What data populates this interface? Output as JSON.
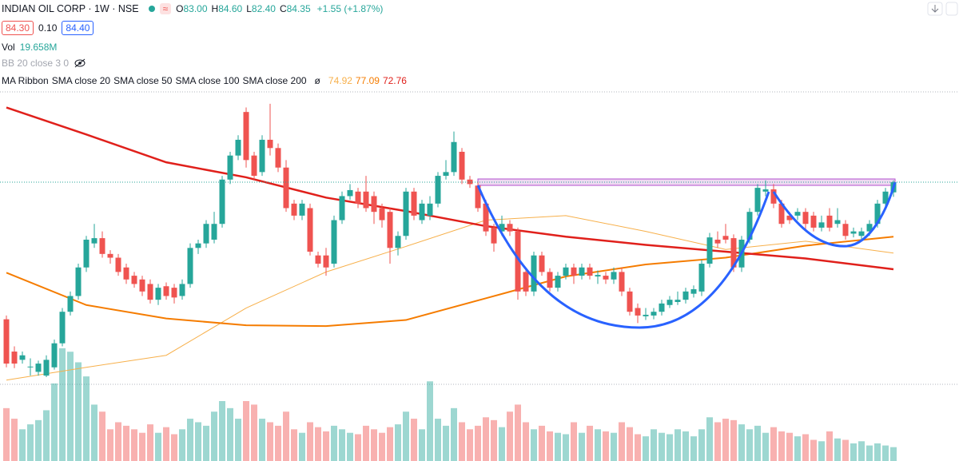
{
  "header": {
    "symbol": "INDIAN OIL CORP · 1W · NSE",
    "badge": "≈",
    "ohlc_labels": [
      "O",
      "H",
      "L",
      "C"
    ],
    "ohlc_values": [
      "83.00",
      "84.60",
      "82.40",
      "84.35"
    ],
    "change": "+1.55 (+1.87%)",
    "bid": "84.30",
    "spread": "0.10",
    "ask": "84.40",
    "vol_title": "Vol",
    "vol_value": "19.658M",
    "bb": "BB 20 close 3 0",
    "ma_title": "MA Ribbon",
    "ma_extra": "SMA close 200",
    "ma_sep": "ø"
  },
  "chart_data": {
    "type": "candlestick",
    "ylim": [
      47.23,
      108.61
    ],
    "volume_lim": [
      0,
      170
    ],
    "colors": {
      "up": "#26a69a",
      "down": "#ef5350",
      "volume_up": "rgba(38,166,154,0.45)",
      "volume_down": "rgba(239,83,80,0.45)"
    },
    "open": [
      66.1,
      61.8,
      60.7,
      59.7,
      59.1,
      58.6,
      59.7,
      62.9,
      67.1,
      69.2,
      73.0,
      76.2,
      76.9,
      74.8,
      74.3,
      73.0,
      71.9,
      71.4,
      70.8,
      68.7,
      70.5,
      70.3,
      69.2,
      70.8,
      75.6,
      76.2,
      76.7,
      78.8,
      84.7,
      87.9,
      93.7,
      87.9,
      85.7,
      90.0,
      88.9,
      86.3,
      81.5,
      79.9,
      80.9,
      74.6,
      74.6,
      73.5,
      79.3,
      82.5,
      83.1,
      83.1,
      82.5,
      80.9,
      80.4,
      75.6,
      77.2,
      83.1,
      79.3,
      79.9,
      81.5,
      85.2,
      85.7,
      88.4,
      84.7,
      83.9,
      81.5,
      78.3,
      77.8,
      78.8,
      77.8,
      72.4,
      69.8,
      74.6,
      72.4,
      70.3,
      71.9,
      73.0,
      71.9,
      73.0,
      71.8,
      71.9,
      71.4,
      72.4,
      69.8,
      67.6,
      66.5,
      66.6,
      67.1,
      68.0,
      68.4,
      68.7,
      69.5,
      69.8,
      73.5,
      76.7,
      77.2,
      76.9,
      73.0,
      76.7,
      80.4,
      83.1,
      83.4,
      81.5,
      79.9,
      79.9,
      80.4,
      79.9,
      78.3,
      79.9,
      78.8,
      78.8,
      77.5,
      77.2,
      77.8,
      78.8,
      81.5,
      83.0
    ],
    "high": [
      66.6,
      62.5,
      61.8,
      60.9,
      60.6,
      61.3,
      63.4,
      67.6,
      69.8,
      73.5,
      77.2,
      78.8,
      77.8,
      75.3,
      74.8,
      73.5,
      72.4,
      71.9,
      71.4,
      70.8,
      71.0,
      70.8,
      71.4,
      76.2,
      76.7,
      79.3,
      80.4,
      85.2,
      88.4,
      90.6,
      94.3,
      88.4,
      90.6,
      94.8,
      89.5,
      87.3,
      82.0,
      82.0,
      81.5,
      75.1,
      75.6,
      79.9,
      83.1,
      84.1,
      83.6,
      85.2,
      83.1,
      81.5,
      80.9,
      77.8,
      83.6,
      83.6,
      82.0,
      82.5,
      85.7,
      87.3,
      91.1,
      88.9,
      85.2,
      84.4,
      82.0,
      78.8,
      79.9,
      79.3,
      78.3,
      72.9,
      75.1,
      75.1,
      72.9,
      72.4,
      73.5,
      73.5,
      73.5,
      73.5,
      72.6,
      72.4,
      73.0,
      73.0,
      70.3,
      68.2,
      67.6,
      67.6,
      68.7,
      69.2,
      69.8,
      70.3,
      70.6,
      74.0,
      77.6,
      77.8,
      78.8,
      77.4,
      77.2,
      80.9,
      84.1,
      84.6,
      84.1,
      82.0,
      80.4,
      80.9,
      80.9,
      80.4,
      79.9,
      80.9,
      80.9,
      79.3,
      78.3,
      78.3,
      79.3,
      82.0,
      83.6,
      84.6
    ],
    "low": [
      59.7,
      59.6,
      60.2,
      58.6,
      58.6,
      58.4,
      59.4,
      62.5,
      66.6,
      68.7,
      72.4,
      75.6,
      74.3,
      73.5,
      71.9,
      70.8,
      70.3,
      69.2,
      68.2,
      68.0,
      68.7,
      68.2,
      68.7,
      70.3,
      74.8,
      75.6,
      76.2,
      78.3,
      84.1,
      87.3,
      86.3,
      84.7,
      85.2,
      87.9,
      85.7,
      80.4,
      79.3,
      79.3,
      74.6,
      73.0,
      71.9,
      73.0,
      78.8,
      82.0,
      80.9,
      80.4,
      78.8,
      78.3,
      73.5,
      74.6,
      76.7,
      79.3,
      78.8,
      79.3,
      81.0,
      84.7,
      85.2,
      84.1,
      83.6,
      80.4,
      77.2,
      75.1,
      77.2,
      77.2,
      68.7,
      69.2,
      69.2,
      71.9,
      69.8,
      69.8,
      71.4,
      70.8,
      71.4,
      71.4,
      70.8,
      70.8,
      70.8,
      69.2,
      66.6,
      65.6,
      66.0,
      66.1,
      66.6,
      67.6,
      68.0,
      68.2,
      69.0,
      69.2,
      73.0,
      75.6,
      76.2,
      72.4,
      72.4,
      76.2,
      79.9,
      82.5,
      80.9,
      78.3,
      78.8,
      79.3,
      77.8,
      77.8,
      77.8,
      77.8,
      78.3,
      76.7,
      77.0,
      76.7,
      77.2,
      78.3,
      80.9,
      82.4
    ],
    "close": [
      60.2,
      60.2,
      61.3,
      59.8,
      60.2,
      60.7,
      62.9,
      67.1,
      69.2,
      73.0,
      76.7,
      76.9,
      74.8,
      74.3,
      72.4,
      71.4,
      70.8,
      69.8,
      68.7,
      70.3,
      69.2,
      69.0,
      70.8,
      75.6,
      76.2,
      78.8,
      78.8,
      84.7,
      87.9,
      90.0,
      87.3,
      85.2,
      90.0,
      88.9,
      86.3,
      80.9,
      79.9,
      81.5,
      75.1,
      73.5,
      73.0,
      79.3,
      82.5,
      83.3,
      81.5,
      80.9,
      80.4,
      79.3,
      75.6,
      77.2,
      83.1,
      79.9,
      81.5,
      81.5,
      85.2,
      85.7,
      89.7,
      84.7,
      84.1,
      80.9,
      77.8,
      76.2,
      78.8,
      77.8,
      69.8,
      69.8,
      74.6,
      72.4,
      70.3,
      71.9,
      73.0,
      71.9,
      73.0,
      71.9,
      72.0,
      71.4,
      72.4,
      69.8,
      67.1,
      66.6,
      66.7,
      67.1,
      68.2,
      68.7,
      68.7,
      69.8,
      70.1,
      73.5,
      77.0,
      76.2,
      76.7,
      73.0,
      76.7,
      80.4,
      83.6,
      83.4,
      81.5,
      78.8,
      79.3,
      80.4,
      78.8,
      78.3,
      79.0,
      78.3,
      79.3,
      77.2,
      77.8,
      77.8,
      78.8,
      81.5,
      83.1,
      84.35
    ],
    "volume": [
      75,
      60,
      45,
      52,
      58,
      72,
      110,
      160,
      155,
      140,
      120,
      80,
      70,
      45,
      55,
      50,
      45,
      40,
      52,
      40,
      48,
      38,
      45,
      60,
      55,
      50,
      70,
      85,
      75,
      60,
      85,
      80,
      60,
      55,
      50,
      70,
      45,
      40,
      55,
      48,
      42,
      50,
      45,
      40,
      38,
      50,
      45,
      40,
      48,
      52,
      70,
      60,
      45,
      113,
      60,
      50,
      75,
      55,
      45,
      50,
      62,
      58,
      48,
      70,
      80,
      55,
      45,
      50,
      42,
      40,
      38,
      55,
      40,
      50,
      45,
      42,
      40,
      55,
      48,
      38,
      35,
      45,
      40,
      38,
      45,
      42,
      35,
      45,
      62,
      55,
      60,
      58,
      52,
      45,
      50,
      40,
      48,
      42,
      40,
      35,
      38,
      30,
      28,
      42,
      32,
      30,
      25,
      28,
      22,
      25,
      22,
      19.658
    ],
    "series": [
      {
        "name": "SMA close 20",
        "color": "#f7b04b",
        "width": 1,
        "x": [
          0,
          10,
          20,
          30,
          40,
          50,
          60,
          70,
          80,
          90,
          100,
          111
        ],
        "values": [
          58.0,
          59.7,
          61.3,
          67.6,
          72.4,
          75.8,
          79.3,
          79.9,
          77.8,
          75.4,
          76.5,
          74.92
        ]
      },
      {
        "name": "SMA close 50",
        "color": "#f57c00",
        "width": 2,
        "x": [
          0,
          10,
          20,
          30,
          40,
          50,
          60,
          70,
          80,
          90,
          100,
          111
        ],
        "values": [
          72.3,
          68.0,
          66.2,
          65.3,
          65.2,
          66.0,
          68.9,
          71.8,
          73.4,
          74.3,
          75.9,
          77.09
        ]
      },
      {
        "name": "SMA close 100",
        "color": "#e0201b",
        "width": 2.5,
        "x": [
          0,
          10,
          20,
          30,
          40,
          50,
          60,
          70,
          80,
          90,
          100,
          111
        ],
        "values": [
          94.3,
          90.7,
          87.0,
          85.0,
          82.3,
          80.5,
          78.5,
          77.1,
          76.0,
          75.1,
          74.2,
          72.76
        ]
      }
    ]
  }
}
